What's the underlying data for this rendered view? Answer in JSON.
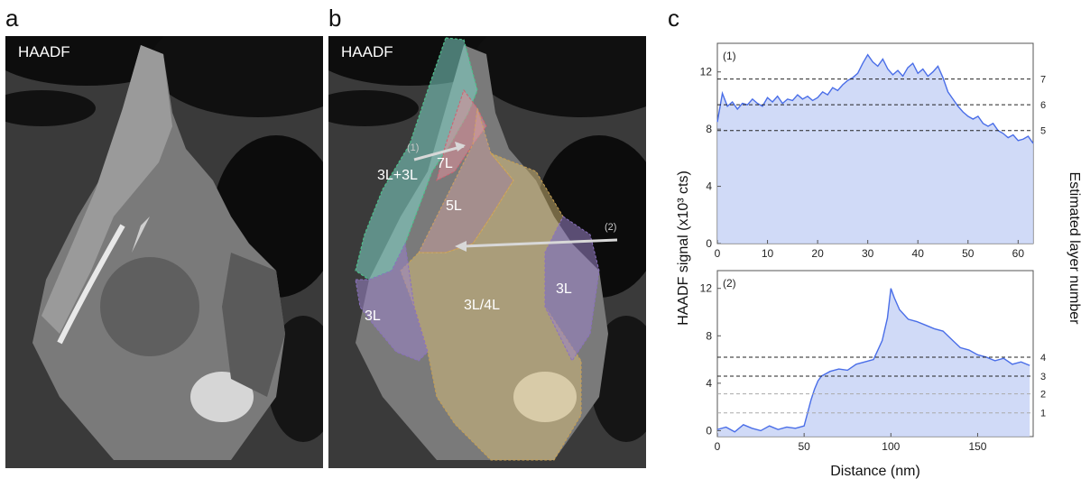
{
  "panels": {
    "a": {
      "letter": "a",
      "tag": "HAADF"
    },
    "b": {
      "letter": "b",
      "tag": "HAADF",
      "regions": [
        "3L+3L",
        "7L",
        "5L",
        "3L/4L",
        "3L",
        "3L"
      ],
      "arrows": [
        "(1)",
        "(2)"
      ]
    },
    "c": {
      "letter": "c"
    }
  },
  "colors": {
    "line": "#4a6ee8",
    "fill": "#c8d4f6",
    "teal": "#7fd6c8",
    "red": "#e0909a",
    "yellow": "#d9c07a",
    "purple": "#9b84c8"
  },
  "chart_data": [
    {
      "type": "area",
      "title": "(1)",
      "xlim": [
        0,
        63
      ],
      "ylim": [
        0,
        14
      ],
      "xticks": [
        0,
        10,
        20,
        30,
        40,
        50,
        60
      ],
      "yticks": [
        0,
        4,
        8,
        12
      ],
      "ylabel": "HAADF signal (x10³ cts)",
      "y2label": "Estimated layer number",
      "reference_lines": [
        {
          "y": 11.5,
          "label": "7",
          "style": "dark"
        },
        {
          "y": 9.7,
          "label": "6",
          "style": "dark"
        },
        {
          "y": 7.9,
          "label": "5",
          "style": "dark"
        }
      ],
      "x": [
        0,
        1,
        2,
        3,
        4,
        5,
        6,
        7,
        8,
        9,
        10,
        11,
        12,
        13,
        14,
        15,
        16,
        17,
        18,
        19,
        20,
        21,
        22,
        23,
        24,
        25,
        26,
        27,
        28,
        29,
        30,
        31,
        32,
        33,
        34,
        35,
        36,
        37,
        38,
        39,
        40,
        41,
        42,
        43,
        44,
        45,
        46,
        47,
        48,
        49,
        50,
        51,
        52,
        53,
        54,
        55,
        56,
        57,
        58,
        59,
        60,
        61,
        62,
        63
      ],
      "y": [
        8.5,
        10.5,
        9.6,
        9.9,
        9.4,
        9.8,
        9.7,
        10.1,
        9.8,
        9.6,
        10.2,
        9.9,
        10.3,
        9.8,
        10.1,
        10.0,
        10.4,
        10.1,
        10.3,
        10.0,
        10.2,
        10.6,
        10.4,
        10.9,
        10.7,
        11.1,
        11.4,
        11.6,
        11.9,
        12.6,
        13.2,
        12.7,
        12.4,
        12.9,
        12.2,
        11.8,
        12.1,
        11.7,
        12.3,
        12.6,
        11.9,
        12.2,
        11.7,
        12.0,
        12.4,
        11.6,
        10.6,
        10.1,
        9.6,
        9.2,
        8.9,
        8.7,
        8.9,
        8.4,
        8.2,
        8.4,
        7.9,
        7.7,
        7.4,
        7.6,
        7.2,
        7.3,
        7.5,
        7.0
      ]
    },
    {
      "type": "area",
      "title": "(2)",
      "xlim": [
        0,
        182
      ],
      "ylim": [
        -0.5,
        13.5
      ],
      "xticks": [
        0,
        50,
        100,
        150
      ],
      "yticks": [
        0,
        4,
        8,
        12
      ],
      "xlabel": "Distance (nm)",
      "reference_lines": [
        {
          "y": 6.2,
          "label": "4",
          "style": "dark"
        },
        {
          "y": 4.6,
          "label": "3",
          "style": "dark"
        },
        {
          "y": 3.1,
          "label": "2",
          "style": "light"
        },
        {
          "y": 1.5,
          "label": "1",
          "style": "light"
        }
      ],
      "x": [
        0,
        5,
        10,
        15,
        20,
        25,
        30,
        35,
        40,
        45,
        50,
        52,
        54,
        56,
        58,
        60,
        65,
        70,
        75,
        80,
        85,
        90,
        95,
        98,
        100,
        102,
        105,
        110,
        115,
        120,
        125,
        130,
        135,
        140,
        145,
        150,
        155,
        160,
        165,
        170,
        175,
        180
      ],
      "y": [
        0.1,
        0.3,
        -0.1,
        0.5,
        0.2,
        0.0,
        0.4,
        0.1,
        0.3,
        0.2,
        0.4,
        1.5,
        2.6,
        3.5,
        4.2,
        4.6,
        5.0,
        5.2,
        5.1,
        5.6,
        5.8,
        6.0,
        7.6,
        9.5,
        12.0,
        11.2,
        10.2,
        9.4,
        9.2,
        8.9,
        8.6,
        8.4,
        7.7,
        7.0,
        6.8,
        6.4,
        6.2,
        5.9,
        6.1,
        5.6,
        5.8,
        5.5
      ]
    }
  ]
}
